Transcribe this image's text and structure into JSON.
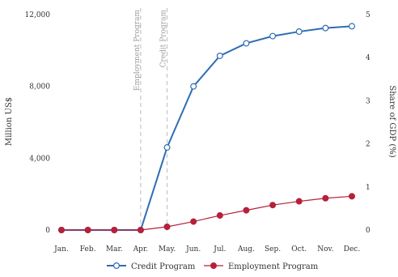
{
  "chart_data": {
    "type": "line",
    "categories": [
      "Jan.",
      "Feb.",
      "Mar.",
      "Apr.",
      "May.",
      "Jun.",
      "Jul.",
      "Aug.",
      "Sep.",
      "Oct.",
      "Nov.",
      "Dec."
    ],
    "ylabel": "Million US$",
    "y2label": "Share of GDP (%)",
    "ylim": [
      0,
      12000
    ],
    "y2lim": [
      0,
      5
    ],
    "yticks": [
      "0",
      "4,000",
      "8,000",
      "12,000"
    ],
    "y2ticks": [
      "0",
      "1",
      "2",
      "3",
      "4",
      "5"
    ],
    "grid": false,
    "legend_position": "bottom",
    "series": [
      {
        "name": "Credit Program",
        "color": "#2f6db3",
        "marker": "open-circle",
        "values": [
          0,
          0,
          0,
          0,
          4600,
          8000,
          9700,
          10400,
          10800,
          11050,
          11250,
          11350
        ]
      },
      {
        "name": "Employment Program",
        "color": "#b5213a",
        "marker": "filled-circle",
        "values": [
          0,
          0,
          0,
          0,
          180,
          470,
          810,
          1100,
          1390,
          1600,
          1770,
          1880
        ]
      }
    ],
    "annotations": [
      {
        "text": "Employment Program",
        "x": "Apr."
      },
      {
        "text": "Credit Program",
        "x": "May."
      }
    ]
  }
}
